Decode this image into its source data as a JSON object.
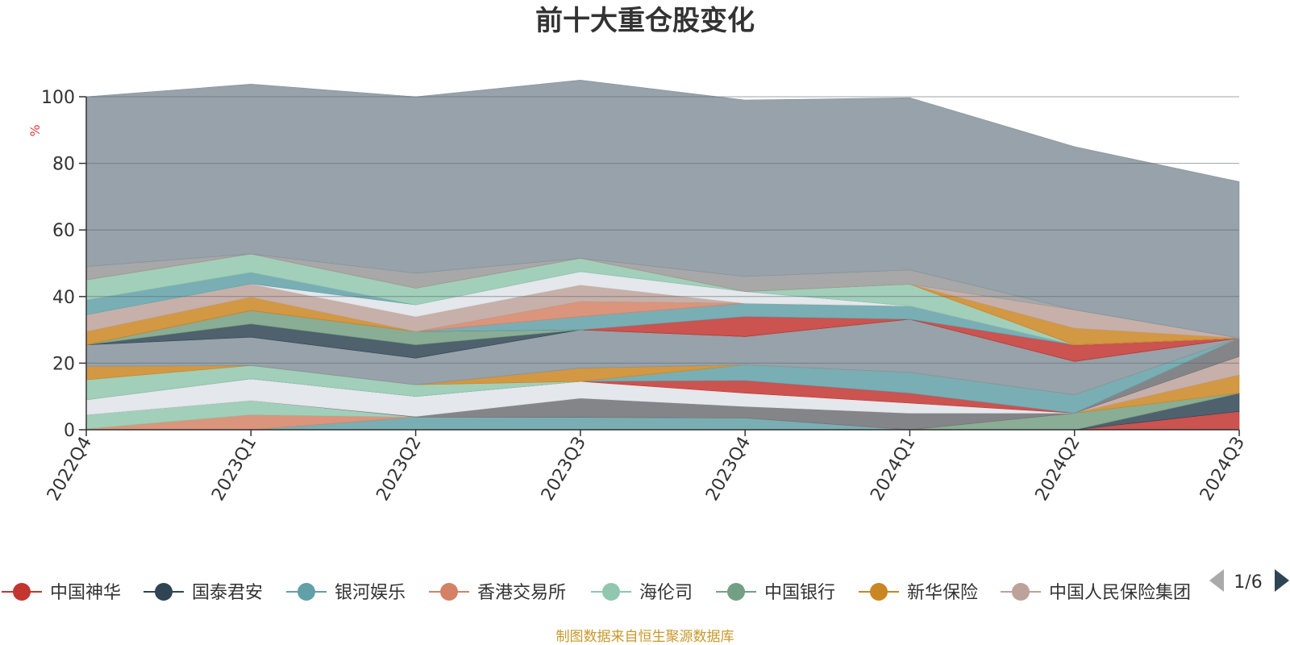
{
  "title": "前十大重仓股变化",
  "source_note": "制图数据来自恒生聚源数据库",
  "colors": {
    "title": "#333333",
    "unit": "#e04040",
    "source": "#c8982a",
    "background_area": "#85929b",
    "pager_inactive": "#aaaaaa",
    "pager_active": "#2f4554"
  },
  "legend": {
    "items": [
      {
        "name": "中国神华",
        "color": "#c23531"
      },
      {
        "name": "国泰君安",
        "color": "#2f4554"
      },
      {
        "name": "银河娱乐",
        "color": "#61a0a8"
      },
      {
        "name": "香港交易所",
        "color": "#d48265"
      },
      {
        "name": "海伦司",
        "color": "#91c7ae"
      },
      {
        "name": "中国银行",
        "color": "#749f83"
      },
      {
        "name": "新华保险",
        "color": "#ca8622"
      },
      {
        "name": "中国人民保险集团",
        "color": "#bda29a"
      }
    ],
    "page": "1/6",
    "prev_icon": "triangle-left-icon",
    "next_icon": "triangle-right-icon"
  },
  "chart_data": {
    "type": "area",
    "stacked": true,
    "title": "前十大重仓股变化",
    "ylabel": "%",
    "ylim": [
      0,
      100
    ],
    "yticks": [
      "0",
      "20",
      "40",
      "60",
      "80",
      "100"
    ],
    "categories": [
      "2022Q4",
      "2023Q1",
      "2023Q2",
      "2023Q3",
      "2023Q4",
      "2024Q1",
      "2024Q2",
      "2024Q3"
    ],
    "grid": true,
    "legend_position": "bottom",
    "series": [
      {
        "name": "中国神华",
        "color": "#c23531",
        "values": [
          0,
          0,
          0,
          0,
          0,
          0,
          0,
          5.5
        ]
      },
      {
        "name": "国泰君安",
        "color": "#2f4554",
        "values": [
          0,
          0,
          0,
          0,
          0,
          0,
          0,
          5.5
        ]
      },
      {
        "name": "银河娱乐",
        "color": "#61a0a8",
        "values": [
          0,
          0,
          3.8,
          3.7,
          3.5,
          0,
          0,
          0
        ]
      },
      {
        "name": "香港交易所",
        "color": "#d48265",
        "values": [
          0.3,
          4.5,
          0,
          0,
          0,
          0,
          0,
          0
        ]
      },
      {
        "name": "海伦司",
        "color": "#91c7ae",
        "values": [
          4.2,
          4.3,
          0,
          0,
          0,
          0,
          0,
          0
        ]
      },
      {
        "name": "中国银行",
        "color": "#749f83",
        "values": [
          0,
          0,
          0,
          0,
          0,
          0,
          5,
          0
        ]
      },
      {
        "name": "新华保险",
        "color": "#ca8622",
        "values": [
          0,
          0,
          0,
          0,
          0,
          0,
          0,
          5.5
        ]
      },
      {
        "name": "中国人民保险集团",
        "color": "#bda29a",
        "values": [
          0,
          0,
          0,
          0,
          0,
          0,
          0,
          5.5
        ]
      },
      {
        "name": "",
        "color": "#6e7074",
        "values": [
          0,
          0,
          0.2,
          5.8,
          3.5,
          5,
          0,
          5.5
        ]
      },
      {
        "name": "",
        "color": "#dfe3e8",
        "values": [
          4.5,
          6.5,
          6,
          5,
          4,
          3,
          0,
          0
        ]
      },
      {
        "name": "",
        "color": "#c23531",
        "values": [
          0,
          0,
          0,
          0,
          3.8,
          3,
          0,
          0
        ]
      },
      {
        "name": "",
        "color": "#61a0a8",
        "values": [
          0,
          0,
          0,
          0,
          4.7,
          6.2,
          5.5,
          0
        ]
      },
      {
        "name": "",
        "color": "#91c7ae",
        "values": [
          6,
          4,
          3.5,
          0,
          0,
          0,
          0,
          0
        ]
      },
      {
        "name": "",
        "color": "#ca8622",
        "values": [
          4,
          0,
          0,
          4,
          0,
          0,
          0,
          0
        ]
      },
      {
        "name": "",
        "color": "#85929b",
        "values": [
          6.5,
          8.5,
          8,
          11.5,
          8.5,
          16,
          10,
          0
        ]
      },
      {
        "name": "",
        "color": "#2f4554",
        "values": [
          0,
          4,
          4,
          0,
          0,
          0,
          0,
          0
        ]
      },
      {
        "name": "",
        "color": "#749f83",
        "values": [
          0,
          4,
          4,
          0,
          0,
          0,
          0,
          0
        ]
      },
      {
        "name": "",
        "color": "#c23531",
        "values": [
          0,
          0,
          0,
          0,
          6,
          0,
          5,
          0
        ]
      },
      {
        "name": "",
        "color": "#61a0a8",
        "values": [
          0,
          0,
          0,
          4,
          4,
          4,
          0,
          0
        ]
      },
      {
        "name": "",
        "color": "#d48265",
        "values": [
          0,
          0,
          0,
          4.5,
          0,
          0,
          0,
          0
        ]
      },
      {
        "name": "",
        "color": "#ca8622",
        "values": [
          4,
          4,
          0,
          0,
          0,
          0,
          0,
          0
        ]
      },
      {
        "name": "",
        "color": "#bda29a",
        "values": [
          5,
          4,
          4.5,
          5,
          0,
          0,
          0,
          0
        ]
      },
      {
        "name": "",
        "color": "#dfe3e8",
        "values": [
          0,
          0,
          3.5,
          4,
          3.5,
          0,
          0,
          0
        ]
      },
      {
        "name": "",
        "color": "#61a0a8",
        "values": [
          4.5,
          3.5,
          0,
          0,
          0,
          0,
          0,
          0
        ]
      },
      {
        "name": "",
        "color": "#91c7ae",
        "values": [
          6,
          5.5,
          5,
          4,
          0,
          6.5,
          0,
          0
        ]
      },
      {
        "name": "",
        "color": "#d48265",
        "values": [
          0,
          0,
          0,
          0,
          0,
          0,
          0,
          0
        ]
      },
      {
        "name": "",
        "color": "#ca8622",
        "values": [
          0,
          0,
          0,
          0,
          0,
          0,
          5,
          0
        ]
      },
      {
        "name": "",
        "color": "#bda29a",
        "values": [
          0,
          0,
          0,
          0,
          0,
          0,
          5.5,
          0
        ]
      },
      {
        "name": "",
        "color": "#999999",
        "values": [
          4,
          0,
          4.5,
          0,
          4.5,
          4.3,
          0,
          0
        ]
      },
      {
        "name": "",
        "color": "#85929b",
        "values": [
          51,
          51,
          53,
          53.5,
          53,
          51.7,
          49,
          47
        ]
      }
    ]
  }
}
